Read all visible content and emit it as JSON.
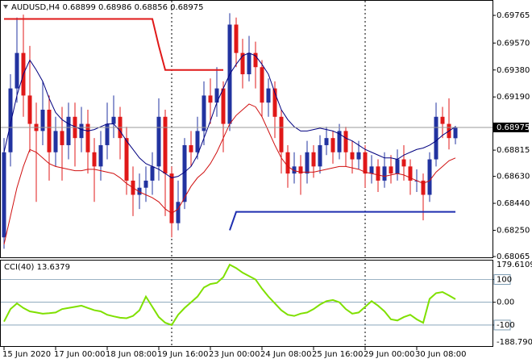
{
  "chart_data": [
    {
      "type": "candlestick",
      "symbol": "AUDUSD,H4",
      "categories": [
        "15 Jun 2020",
        null,
        null,
        null,
        null,
        null,
        null,
        null,
        "17 Jun 00:00",
        null,
        null,
        null,
        null,
        null,
        null,
        null,
        "18 Jun 08:00",
        null,
        null,
        null,
        null,
        null,
        null,
        null,
        "19 Jun 16:00",
        null,
        null,
        null,
        null,
        null,
        null,
        null,
        "23 Jun 00:00",
        null,
        null,
        null,
        null,
        null,
        null,
        null,
        "24 Jun 08:00",
        null,
        null,
        null,
        null,
        null,
        null,
        null,
        "25 Jun 16:00",
        null,
        null,
        null,
        null,
        null,
        null,
        null,
        "29 Jun 00:00",
        null,
        null,
        null,
        null,
        null,
        null,
        null,
        "30 Jun 08:00",
        null,
        null,
        null,
        null,
        null,
        null
      ],
      "open": [
        0.682,
        0.688,
        0.6925,
        0.695,
        0.692,
        0.69,
        0.6895,
        0.691,
        0.688,
        0.6895,
        0.6885,
        0.6905,
        0.689,
        0.69,
        0.688,
        0.687,
        0.6885,
        0.69,
        0.6905,
        0.689,
        0.686,
        0.685,
        0.6855,
        0.686,
        0.687,
        0.6905,
        0.6865,
        0.683,
        0.6845,
        0.6885,
        0.688,
        0.6895,
        0.692,
        0.6915,
        0.6925,
        0.69,
        0.697,
        0.695,
        0.6935,
        0.695,
        0.694,
        0.6915,
        0.6925,
        0.6905,
        0.688,
        0.6865,
        0.687,
        0.6865,
        0.688,
        0.687,
        0.6885,
        0.689,
        0.688,
        0.6895,
        0.688,
        0.6875,
        0.688,
        0.6865,
        0.687,
        0.686,
        0.687,
        0.6865,
        0.6875,
        0.687,
        0.686,
        0.686,
        0.685,
        0.6875,
        0.6905,
        0.69,
        0.68899
      ],
      "high": [
        0.689,
        0.6935,
        0.6975,
        0.6977,
        0.6955,
        0.6915,
        0.693,
        0.692,
        0.6905,
        0.6912,
        0.6915,
        0.6915,
        0.6912,
        0.691,
        0.689,
        0.6895,
        0.6915,
        0.692,
        0.6912,
        0.6898,
        0.687,
        0.6865,
        0.687,
        0.688,
        0.6918,
        0.691,
        0.687,
        0.686,
        0.689,
        0.6895,
        0.6905,
        0.693,
        0.6932,
        0.694,
        0.693,
        0.6978,
        0.6975,
        0.696,
        0.6962,
        0.6958,
        0.6945,
        0.6932,
        0.693,
        0.691,
        0.6885,
        0.688,
        0.6878,
        0.6888,
        0.6885,
        0.6892,
        0.6898,
        0.6895,
        0.69,
        0.6898,
        0.6888,
        0.6888,
        0.6885,
        0.6878,
        0.6875,
        0.688,
        0.6878,
        0.6882,
        0.6885,
        0.6875,
        0.6868,
        0.6865,
        0.688,
        0.6915,
        0.6912,
        0.6918,
        0.68986
      ],
      "low": [
        0.6812,
        0.687,
        0.6915,
        0.6905,
        0.688,
        0.6845,
        0.6885,
        0.686,
        0.687,
        0.686,
        0.6875,
        0.687,
        0.688,
        0.6865,
        0.6845,
        0.686,
        0.6875,
        0.689,
        0.6875,
        0.685,
        0.6835,
        0.684,
        0.6845,
        0.685,
        0.686,
        0.6835,
        0.682,
        0.6825,
        0.684,
        0.687,
        0.6875,
        0.6885,
        0.69,
        0.6905,
        0.688,
        0.6895,
        0.694,
        0.6925,
        0.693,
        0.6925,
        0.6905,
        0.6905,
        0.689,
        0.6865,
        0.6855,
        0.6858,
        0.685,
        0.6858,
        0.6862,
        0.6865,
        0.6878,
        0.6872,
        0.6875,
        0.687,
        0.6865,
        0.6868,
        0.6855,
        0.6858,
        0.6852,
        0.6855,
        0.6858,
        0.686,
        0.686,
        0.685,
        0.6852,
        0.6832,
        0.6845,
        0.687,
        0.689,
        0.6882,
        0.68856
      ],
      "close": [
        0.688,
        0.6925,
        0.695,
        0.692,
        0.69,
        0.6895,
        0.691,
        0.688,
        0.6895,
        0.6885,
        0.6905,
        0.689,
        0.69,
        0.688,
        0.687,
        0.6885,
        0.69,
        0.6905,
        0.689,
        0.686,
        0.685,
        0.6855,
        0.686,
        0.687,
        0.6905,
        0.6865,
        0.683,
        0.6845,
        0.6885,
        0.688,
        0.6895,
        0.692,
        0.6915,
        0.6925,
        0.69,
        0.697,
        0.695,
        0.6935,
        0.695,
        0.694,
        0.6915,
        0.6925,
        0.6905,
        0.688,
        0.6865,
        0.687,
        0.6865,
        0.688,
        0.687,
        0.6885,
        0.689,
        0.688,
        0.6895,
        0.688,
        0.6875,
        0.688,
        0.6865,
        0.687,
        0.686,
        0.687,
        0.6865,
        0.6875,
        0.687,
        0.686,
        0.686,
        0.685,
        0.6875,
        0.6905,
        0.69,
        0.689,
        0.68975
      ],
      "up_color": "#2233a0",
      "down_color": "#e01818",
      "overlays": [
        {
          "color": "#000080",
          "values": [
            0.688,
            0.69,
            0.692,
            0.6935,
            0.6945,
            0.6938,
            0.693,
            0.6918,
            0.6908,
            0.6903,
            0.69,
            0.6898,
            0.6896,
            0.6895,
            0.6896,
            0.6898,
            0.69,
            0.69,
            0.6895,
            0.6888,
            0.6882,
            0.6876,
            0.6872,
            0.687,
            0.6868,
            0.6865,
            0.6862,
            0.6863,
            0.6866,
            0.687,
            0.6878,
            0.689,
            0.6902,
            0.6915,
            0.6925,
            0.6935,
            0.6942,
            0.6948,
            0.695,
            0.6948,
            0.6942,
            0.6935,
            0.6922,
            0.691,
            0.6903,
            0.6898,
            0.6895,
            0.6895,
            0.6896,
            0.6897,
            0.6896,
            0.6895,
            0.6893,
            0.689,
            0.6888,
            0.6885,
            0.6882,
            0.688,
            0.6878,
            0.6876,
            0.6876,
            0.6875,
            0.6878,
            0.688,
            0.6882,
            0.6883,
            0.6885,
            0.6888,
            0.6892,
            0.6895,
            0.6898
          ]
        },
        {
          "color": "#d01010",
          "values": [
            0.6815,
            0.6835,
            0.6855,
            0.687,
            0.6882,
            0.688,
            0.6876,
            0.6872,
            0.687,
            0.6869,
            0.6868,
            0.6867,
            0.6867,
            0.6868,
            0.6868,
            0.6867,
            0.6866,
            0.6865,
            0.6862,
            0.6858,
            0.6855,
            0.6852,
            0.685,
            0.6848,
            0.6845,
            0.684,
            0.6837,
            0.684,
            0.6848,
            0.6856,
            0.6862,
            0.6866,
            0.6872,
            0.688,
            0.689,
            0.69,
            0.6906,
            0.691,
            0.6914,
            0.6912,
            0.6905,
            0.6895,
            0.6885,
            0.6876,
            0.687,
            0.6867,
            0.6866,
            0.6866,
            0.6866,
            0.6867,
            0.6868,
            0.6869,
            0.687,
            0.687,
            0.6869,
            0.6868,
            0.6866,
            0.6865,
            0.6864,
            0.6863,
            0.6864,
            0.6865,
            0.6864,
            0.6862,
            0.686,
            0.6858,
            0.686,
            0.6866,
            0.687,
            0.6874,
            0.6876
          ]
        },
        {
          "color": "#e01818",
          "width": 2,
          "values": [
            0.6974,
            0.6974,
            0.6974,
            0.6974,
            0.6974,
            0.6974,
            0.6974,
            0.6974,
            0.6974,
            0.6974,
            0.6974,
            0.6974,
            0.6974,
            0.6974,
            0.6974,
            0.6974,
            0.6974,
            0.6974,
            0.6974,
            0.6974,
            0.6974,
            0.6974,
            0.6974,
            0.6974,
            0.6955,
            0.6938,
            0.6938,
            0.6938,
            0.6938,
            0.6938,
            0.6938,
            0.6938,
            0.6938,
            0.6938,
            0.6938,
            null,
            null,
            null,
            null,
            null,
            null,
            null,
            null,
            null,
            null,
            null,
            null,
            null,
            null,
            null,
            null,
            null,
            null,
            null,
            null,
            null,
            null,
            null,
            null,
            null,
            null,
            null,
            null,
            null,
            null,
            null,
            null,
            null,
            null,
            null,
            null
          ]
        },
        {
          "color": "#1f2fb0",
          "width": 2,
          "values": [
            null,
            null,
            null,
            null,
            null,
            null,
            null,
            null,
            null,
            null,
            null,
            null,
            null,
            null,
            null,
            null,
            null,
            null,
            null,
            null,
            null,
            null,
            null,
            null,
            null,
            null,
            null,
            null,
            null,
            null,
            null,
            null,
            null,
            null,
            null,
            0.6825,
            0.6838,
            0.6838,
            0.6838,
            0.6838,
            0.6838,
            0.6838,
            0.6838,
            0.6838,
            0.6838,
            0.6838,
            0.6838,
            0.6838,
            0.6838,
            0.6838,
            0.6838,
            0.6838,
            0.6838,
            0.6838,
            0.6838,
            0.6838,
            0.6838,
            0.6838,
            0.6838,
            0.6838,
            0.6838,
            0.6838,
            0.6838,
            0.6838,
            0.6838,
            0.6838,
            0.6838,
            0.6838,
            0.6838,
            0.6838,
            0.6838
          ]
        }
      ],
      "ylim": [
        0.68065,
        0.69862
      ],
      "yticks": [
        0.69765,
        {
          "value": 0.6957,
          "label": "0.69570"
        },
        {
          "value": 0.6938,
          "label": "0.69380"
        },
        {
          "value": 0.6919,
          "label": "0.69190"
        },
        0.68815,
        {
          "value": 0.6863,
          "label": "0.68630"
        },
        {
          "value": 0.6844,
          "label": "0.68440"
        },
        {
          "value": 0.6825,
          "label": "0.68250"
        },
        0.68065
      ]
    },
    {
      "type": "line",
      "title": "CCI(40)",
      "color": "#7fe000",
      "values": [
        -85,
        -30,
        -5,
        -25,
        -40,
        -45,
        -50,
        -48,
        -45,
        -30,
        -25,
        -20,
        -15,
        -25,
        -35,
        -40,
        -55,
        -62,
        -68,
        -70,
        -60,
        -35,
        25,
        -20,
        -65,
        -90,
        -100,
        -55,
        -25,
        0,
        25,
        65,
        80,
        85,
        110,
        165,
        150,
        130,
        115,
        100,
        60,
        25,
        -5,
        -35,
        -55,
        -60,
        -50,
        -45,
        -30,
        -10,
        5,
        10,
        0,
        -30,
        -50,
        -45,
        -20,
        5,
        -15,
        -40,
        -75,
        -80,
        -65,
        -55,
        -75,
        -90,
        15,
        40,
        45,
        30,
        13.6379
      ],
      "ylim": [
        -188.7904,
        179.6109
      ],
      "yticks": [
        100,
        {
          "value": 0,
          "label": "0.00"
        },
        -100
      ]
    }
  ]
}
